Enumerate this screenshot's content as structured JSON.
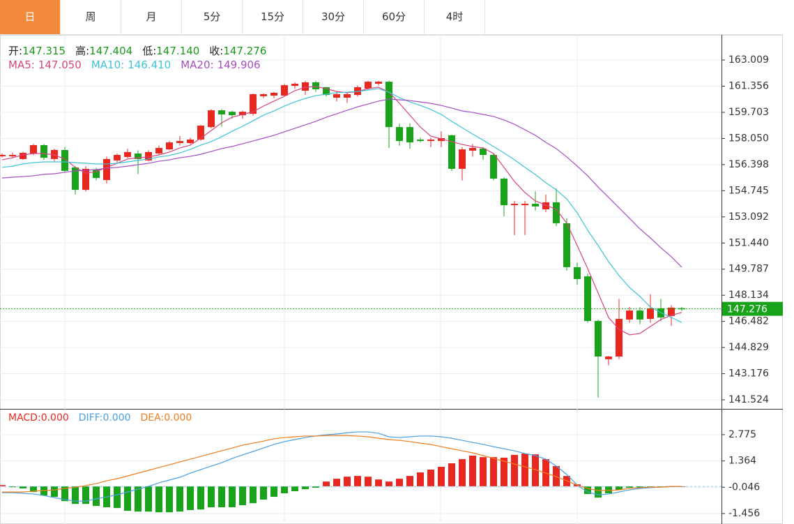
{
  "chart_data": {
    "type": "candlestick",
    "tabs": [
      "日",
      "周",
      "月",
      "5分",
      "15分",
      "30分",
      "60分",
      "4时"
    ],
    "active_tab": 0,
    "up_color": "#e8281e",
    "down_color": "#19a31a",
    "info": [
      {
        "label": "开:",
        "value_label": "147.315"
      },
      {
        "label": "高:",
        "value_label": "147.404"
      },
      {
        "label": "低:",
        "value_label": "147.140"
      },
      {
        "label": "收:",
        "value_label": "147.276"
      }
    ],
    "open": [
      156.92,
      156.92,
      156.75,
      157.1,
      157.63,
      156.75,
      157.32,
      156.22,
      154.8,
      156.08,
      155.42,
      156.66,
      156.88,
      157.1,
      156.66,
      157.1,
      157.36,
      157.76,
      157.76,
      157.98,
      158.77,
      159.83,
      159.74,
      159.52,
      159.61,
      160.72,
      160.76,
      160.76,
      161.38,
      161.07,
      161.6,
      161.29,
      160.63,
      160.63,
      160.8,
      161.2,
      161.51,
      161.64,
      158.77,
      158.77,
      157.98,
      157.89,
      157.89,
      158.25,
      156.13,
      157.28,
      157.41,
      157.01,
      155.51,
      153.83,
      153.83,
      153.92,
      153.57,
      154.01,
      152.69,
      149.91,
      149.33,
      146.51,
      144.09,
      144.26,
      146.6,
      147.17,
      146.64,
      147.31,
      146.82,
      147.315
    ],
    "high": [
      157.1,
      157.15,
      157.2,
      157.7,
      157.7,
      157.4,
      157.5,
      156.3,
      156.3,
      156.2,
      156.9,
      157.1,
      157.4,
      157.3,
      157.3,
      157.6,
      157.9,
      158.2,
      158.1,
      158.9,
      159.9,
      159.9,
      159.8,
      159.8,
      160.9,
      160.9,
      161.0,
      161.5,
      161.6,
      161.7,
      161.7,
      161.3,
      161.0,
      161.0,
      161.4,
      161.7,
      161.7,
      161.7,
      159.0,
      159.0,
      158.1,
      158.1,
      158.5,
      158.3,
      157.5,
      157.7,
      157.5,
      157.1,
      155.6,
      154.1,
      154.1,
      154.7,
      154.5,
      154.9,
      153.0,
      150.2,
      149.5,
      146.6,
      144.3,
      147.9,
      147.4,
      147.4,
      148.19,
      147.9,
      147.5,
      147.404
    ],
    "low": [
      156.85,
      156.8,
      156.7,
      157.0,
      156.7,
      156.6,
      155.9,
      154.5,
      154.7,
      155.4,
      155.2,
      156.5,
      156.8,
      155.8,
      156.6,
      157.0,
      157.3,
      157.6,
      157.7,
      157.9,
      158.7,
      158.8,
      159.3,
      159.3,
      159.5,
      160.6,
      160.6,
      160.7,
      161.2,
      160.8,
      161.0,
      160.7,
      160.4,
      160.3,
      160.7,
      161.1,
      161.4,
      157.45,
      157.6,
      157.4,
      157.8,
      157.5,
      157.5,
      156.0,
      155.4,
      156.9,
      156.7,
      155.4,
      153.13,
      151.94,
      151.94,
      153.5,
      153.4,
      152.5,
      149.7,
      148.8,
      146.4,
      141.66,
      143.7,
      144.1,
      146.4,
      146.3,
      146.4,
      146.5,
      146.2,
      147.14
    ],
    "close": [
      157.01,
      157.01,
      157.14,
      157.63,
      156.83,
      157.32,
      156.0,
      154.8,
      156.13,
      155.55,
      156.75,
      157.01,
      157.19,
      156.75,
      157.19,
      157.45,
      157.8,
      157.89,
      157.98,
      158.86,
      159.83,
      159.57,
      159.52,
      159.74,
      160.85,
      160.85,
      160.94,
      161.42,
      161.51,
      161.6,
      161.16,
      160.8,
      160.85,
      160.85,
      161.29,
      161.64,
      161.64,
      158.77,
      157.89,
      157.8,
      157.89,
      157.98,
      158.07,
      156.13,
      157.36,
      157.45,
      157.01,
      155.51,
      153.83,
      153.92,
      153.92,
      153.75,
      154.01,
      152.69,
      149.91,
      149.16,
      146.51,
      144.26,
      144.26,
      146.64,
      147.17,
      146.6,
      147.31,
      146.73,
      147.35,
      147.276
    ],
    "ylim": [
      140.95,
      164.6
    ],
    "yticks": [
      141.524,
      143.176,
      144.829,
      146.482,
      148.134,
      149.787,
      {
        "value": 151.44,
        "label": "151.440"
      },
      153.092,
      154.745,
      156.398,
      {
        "value": 158.05,
        "label": "158.050"
      },
      159.703,
      161.356,
      163.009
    ],
    "grid": true,
    "ma": [
      {
        "name": "MA5:",
        "color": "#d8457c",
        "last_label": "147.050",
        "values": [
          156.7,
          156.83,
          157.01,
          157.1,
          157.1,
          157.01,
          156.75,
          156.22,
          155.86,
          155.95,
          156.22,
          156.48,
          156.75,
          156.83,
          156.88,
          157.01,
          157.19,
          157.45,
          157.63,
          158.07,
          158.55,
          159.04,
          159.39,
          159.57,
          159.74,
          160.1,
          160.41,
          160.72,
          161.07,
          161.29,
          161.33,
          161.2,
          161.02,
          160.94,
          161.02,
          161.2,
          161.29,
          160.98,
          160.27,
          159.52,
          158.77,
          158.2,
          158.02,
          157.85,
          157.67,
          157.54,
          157.45,
          157.1,
          156.22,
          155.33,
          154.63,
          154.1,
          153.83,
          153.57,
          152.69,
          151.28,
          149.82,
          148.28,
          146.73,
          145.98,
          145.63,
          145.72,
          146.16,
          146.6,
          146.86,
          147.05
        ]
      },
      {
        "name": "MA10:",
        "color": "#3ec3d5",
        "last_label": "146.410",
        "values": [
          156.22,
          156.3,
          156.44,
          156.52,
          156.57,
          156.57,
          156.57,
          156.52,
          156.48,
          156.44,
          156.44,
          156.48,
          156.57,
          156.66,
          156.75,
          156.88,
          156.97,
          157.14,
          157.36,
          157.63,
          157.85,
          158.16,
          158.51,
          158.82,
          159.17,
          159.52,
          159.79,
          160.1,
          160.36,
          160.58,
          160.76,
          160.85,
          160.94,
          160.98,
          161.02,
          161.11,
          161.2,
          160.98,
          160.63,
          160.36,
          160.14,
          159.88,
          159.57,
          159.13,
          158.73,
          158.33,
          157.94,
          157.54,
          157.14,
          156.7,
          156.22,
          155.77,
          155.25,
          154.8,
          154.23,
          153.35,
          152.25,
          151.28,
          150.26,
          149.38,
          148.63,
          148.06,
          147.39,
          147.04,
          146.73,
          146.41
        ]
      },
      {
        "name": "MA20:",
        "color": "#a64cc2",
        "last_label": "149.906",
        "values": [
          155.55,
          155.6,
          155.64,
          155.69,
          155.78,
          155.82,
          155.91,
          156.0,
          156.04,
          156.08,
          156.17,
          156.22,
          156.3,
          156.39,
          156.48,
          156.61,
          156.7,
          156.83,
          156.92,
          157.05,
          157.23,
          157.41,
          157.54,
          157.72,
          157.89,
          158.07,
          158.25,
          158.47,
          158.69,
          158.91,
          159.13,
          159.39,
          159.61,
          159.83,
          160.05,
          160.23,
          160.41,
          160.54,
          160.49,
          160.45,
          160.36,
          160.27,
          160.14,
          159.97,
          159.79,
          159.7,
          159.57,
          159.44,
          159.22,
          158.95,
          158.6,
          158.25,
          157.8,
          157.41,
          156.88,
          156.3,
          155.69,
          154.98,
          154.32,
          153.66,
          153.0,
          152.33,
          151.76,
          151.14,
          150.57,
          149.906
        ]
      }
    ],
    "macd": {
      "ylim": [
        -1.98,
        4.12
      ],
      "yticks": [
        -1.456,
        -0.046,
        1.364,
        2.775
      ],
      "histogram": {
        "name": "MACD:",
        "color": "#e8281e",
        "last_label": "0.000",
        "values": [
          0.07,
          -0.04,
          -0.11,
          -0.3,
          -0.49,
          -0.56,
          -0.79,
          -0.94,
          -0.94,
          -1.05,
          -1.12,
          -1.16,
          -1.31,
          -1.35,
          -1.35,
          -1.39,
          -1.39,
          -1.35,
          -1.27,
          -1.24,
          -1.12,
          -1.12,
          -1.12,
          -1.01,
          -0.9,
          -0.71,
          -0.56,
          -0.37,
          -0.26,
          -0.15,
          -0.07,
          0.26,
          0.41,
          0.52,
          0.56,
          0.52,
          0.37,
          0.26,
          0.41,
          0.56,
          0.75,
          0.9,
          1.05,
          1.24,
          1.46,
          1.65,
          1.57,
          1.57,
          1.54,
          1.69,
          1.76,
          1.72,
          1.46,
          1.09,
          0.56,
          0.11,
          -0.41,
          -0.6,
          -0.37,
          -0.19,
          -0.07,
          -0.07,
          -0.04,
          -0.04,
          0.0,
          0.0
        ]
      },
      "lines": [
        {
          "name": "DIFF:",
          "color": "#4a9fe0",
          "last_label": "0.000",
          "values": [
            -0.34,
            -0.34,
            -0.37,
            -0.41,
            -0.49,
            -0.6,
            -0.71,
            -0.79,
            -0.79,
            -0.67,
            -0.56,
            -0.45,
            -0.3,
            -0.15,
            0.0,
            0.19,
            0.34,
            0.49,
            0.71,
            0.9,
            1.09,
            1.27,
            1.5,
            1.69,
            1.87,
            2.06,
            2.25,
            2.4,
            2.51,
            2.62,
            2.7,
            2.77,
            2.81,
            2.88,
            2.92,
            2.92,
            2.85,
            2.66,
            2.62,
            2.66,
            2.7,
            2.7,
            2.66,
            2.58,
            2.47,
            2.36,
            2.25,
            2.13,
            2.02,
            1.91,
            1.76,
            1.65,
            1.46,
            1.09,
            0.64,
            0.07,
            -0.3,
            -0.45,
            -0.41,
            -0.3,
            -0.19,
            -0.11,
            -0.07,
            -0.04,
            0.0,
            0.0
          ]
        },
        {
          "name": "DEA:",
          "color": "#f07c1e",
          "last_label": "0.000",
          "values": [
            -0.3,
            -0.3,
            -0.3,
            -0.26,
            -0.22,
            -0.19,
            -0.11,
            -0.04,
            0.04,
            0.15,
            0.3,
            0.41,
            0.56,
            0.71,
            0.86,
            1.01,
            1.16,
            1.31,
            1.46,
            1.61,
            1.76,
            1.91,
            2.06,
            2.21,
            2.32,
            2.43,
            2.55,
            2.62,
            2.66,
            2.7,
            2.7,
            2.73,
            2.73,
            2.73,
            2.7,
            2.66,
            2.58,
            2.51,
            2.47,
            2.4,
            2.32,
            2.25,
            2.13,
            2.02,
            1.91,
            1.8,
            1.65,
            1.5,
            1.35,
            1.2,
            1.05,
            0.9,
            0.71,
            0.52,
            0.3,
            0.07,
            -0.11,
            -0.22,
            -0.22,
            -0.19,
            -0.11,
            -0.07,
            -0.04,
            -0.04,
            0.0,
            0.0
          ]
        }
      ]
    }
  }
}
